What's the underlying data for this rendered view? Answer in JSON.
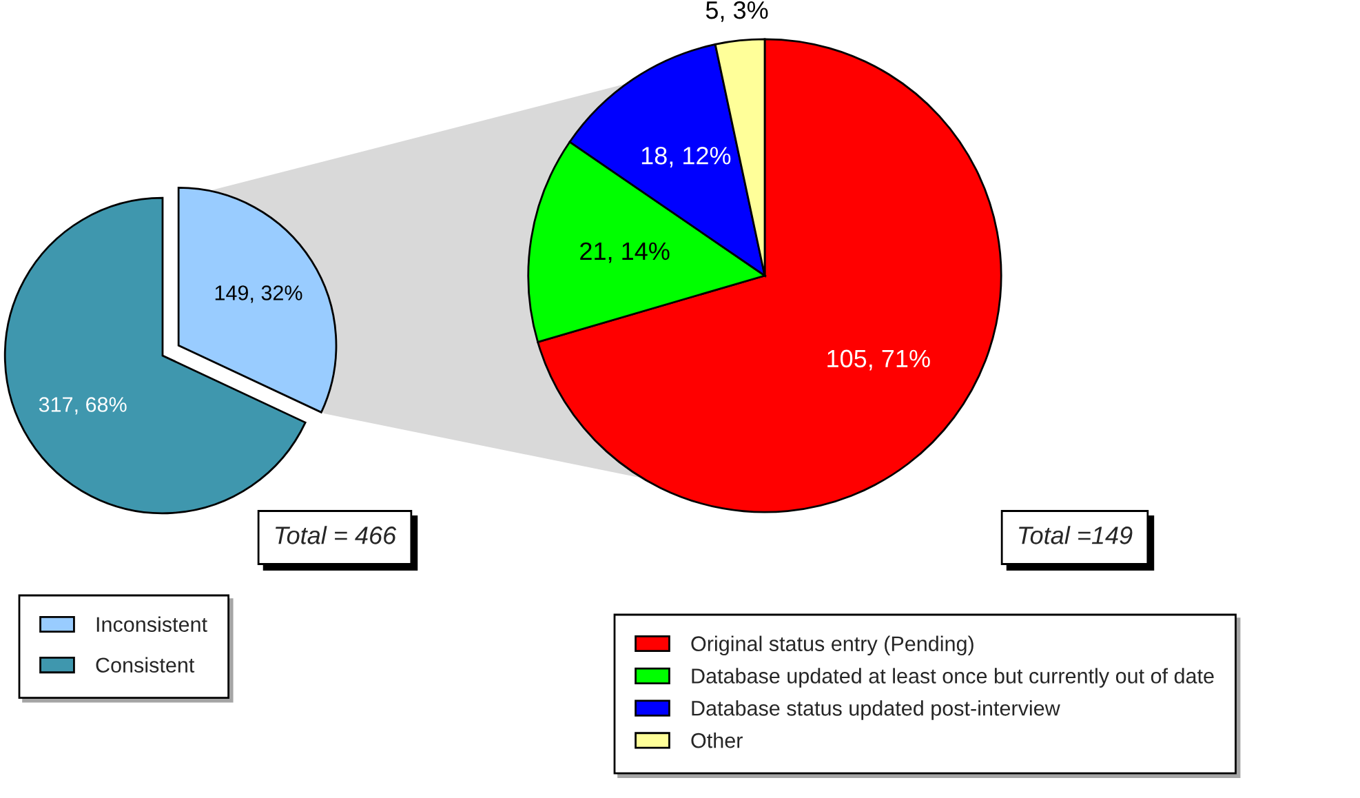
{
  "chart_data": [
    {
      "type": "pie",
      "categories": [
        "Inconsistent",
        "Consistent"
      ],
      "values": [
        149,
        317
      ],
      "colors": [
        "#99ccff",
        "#3f97ae"
      ],
      "value_labels": [
        "149, 32%",
        "317, 68%"
      ],
      "annotations": [
        "Total = 466"
      ],
      "legend": "bottom"
    },
    {
      "type": "pie",
      "categories": [
        "Original status entry (Pending)",
        "Database updated at least once but currently out of date",
        "Database status updated post-interview",
        "Other"
      ],
      "values": [
        105,
        21,
        18,
        5
      ],
      "colors": [
        "#ff0000",
        "#00ff00",
        "#0000ff",
        "#ffff99"
      ],
      "value_labels": [
        "105, 71%",
        "21, 14%",
        "18, 12%",
        "5, 3%"
      ],
      "annotations": [
        "Total =149"
      ],
      "legend": "bottom"
    }
  ]
}
